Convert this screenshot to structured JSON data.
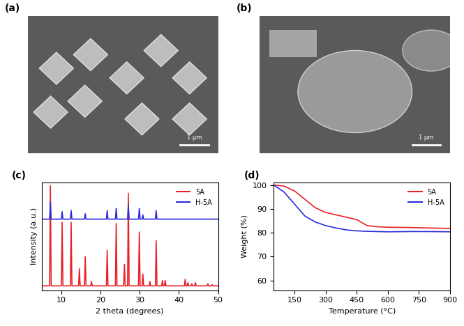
{
  "images": [
    {
      "label": "(a)",
      "scale_bar": "1 μm"
    },
    {
      "label": "(b)",
      "scale_bar": "1 μm"
    }
  ],
  "chart_data": [
    {
      "type": "line",
      "title": "(c)",
      "x_label": "2 theta (degrees)",
      "y_label": "Intensity (a.u.)",
      "x": [
        5,
        7.0,
        7.2,
        7.4,
        10.0,
        10.2,
        10.4,
        12.3,
        12.5,
        12.7,
        14.4,
        14.6,
        14.8,
        15.9,
        16.1,
        16.3,
        17.5,
        17.7,
        17.9,
        21.5,
        21.7,
        21.9,
        23.8,
        24.0,
        24.2,
        25.9,
        26.1,
        26.3,
        26.9,
        27.1,
        27.3,
        29.7,
        29.9,
        30.1,
        30.6,
        30.8,
        31.0,
        32.4,
        32.6,
        32.8,
        34.0,
        34.2,
        34.4,
        35.6,
        35.8,
        36.0,
        36.3,
        36.5,
        36.7,
        41.4,
        41.6,
        41.8,
        42.1,
        42.3,
        42.5,
        43.1,
        43.3,
        43.5,
        44.0,
        44.2,
        44.4,
        47.2,
        47.4,
        47.6,
        48.3,
        48.5,
        48.7,
        50
      ],
      "series": [
        {
          "name": "5A",
          "color": "#e8212a",
          "values": [
            4,
            4,
            97,
            4,
            4,
            63,
            4,
            4,
            63,
            4,
            4,
            20,
            4,
            4,
            31,
            4,
            4,
            8,
            4,
            4,
            37,
            4,
            4,
            62,
            4,
            4,
            24,
            4,
            4,
            90,
            4,
            4,
            54,
            4,
            4,
            15,
            4,
            4,
            8,
            4,
            4,
            46,
            4,
            4,
            9,
            4,
            4,
            9,
            4,
            4,
            10,
            4,
            4,
            7,
            4,
            4,
            6,
            4,
            4,
            7,
            4,
            4,
            6,
            4,
            4,
            5,
            4,
            4
          ]
        },
        {
          "name": "H-5A",
          "color": "#2b2bd9",
          "values": [
            66,
            66,
            82,
            66,
            66,
            73,
            66,
            66,
            74,
            66,
            66,
            66,
            66,
            66,
            71,
            66,
            66,
            66,
            66,
            66,
            74,
            66,
            66,
            76,
            66,
            66,
            66,
            66,
            66,
            79,
            66,
            66,
            76,
            66,
            66,
            70,
            66,
            66,
            66,
            66,
            66,
            74,
            66,
            66,
            66,
            66,
            66,
            66,
            66,
            66,
            66,
            66,
            66,
            66,
            66,
            66,
            66,
            66,
            66,
            66,
            66,
            66,
            66,
            66,
            66,
            66,
            66,
            66
          ]
        }
      ],
      "xlim": [
        5,
        50
      ],
      "xticks": [
        10,
        20,
        30,
        40,
        50
      ],
      "ylim": [
        0,
        100
      ],
      "tick_labels": "x",
      "legend": "upper right"
    },
    {
      "type": "line",
      "title": "(d)",
      "x_label": "Temperature (°C)",
      "y_label": "Weight (%)",
      "x": [
        50,
        100,
        150,
        200,
        250,
        300,
        350,
        400,
        450,
        500,
        550,
        600,
        700,
        800,
        900
      ],
      "series": [
        {
          "name": "5A",
          "color": "#e8212a",
          "values": [
            100,
            99.5,
            97.5,
            94,
            90.5,
            88.5,
            87.5,
            86.5,
            85.5,
            83,
            82.5,
            82.3,
            82.2,
            82,
            81.8
          ]
        },
        {
          "name": "H-5A",
          "color": "#2b2bd9",
          "values": [
            100,
            97,
            92,
            87,
            84.5,
            83,
            82,
            81.2,
            80.8,
            80.6,
            80.5,
            80.4,
            80.5,
            80.5,
            80.4
          ]
        }
      ],
      "xlim": [
        50,
        900
      ],
      "xticks": [
        150,
        300,
        450,
        600,
        750,
        900
      ],
      "ylim": [
        56,
        101
      ],
      "yticks": [
        60,
        70,
        80,
        90,
        100
      ],
      "legend": "upper right"
    }
  ]
}
